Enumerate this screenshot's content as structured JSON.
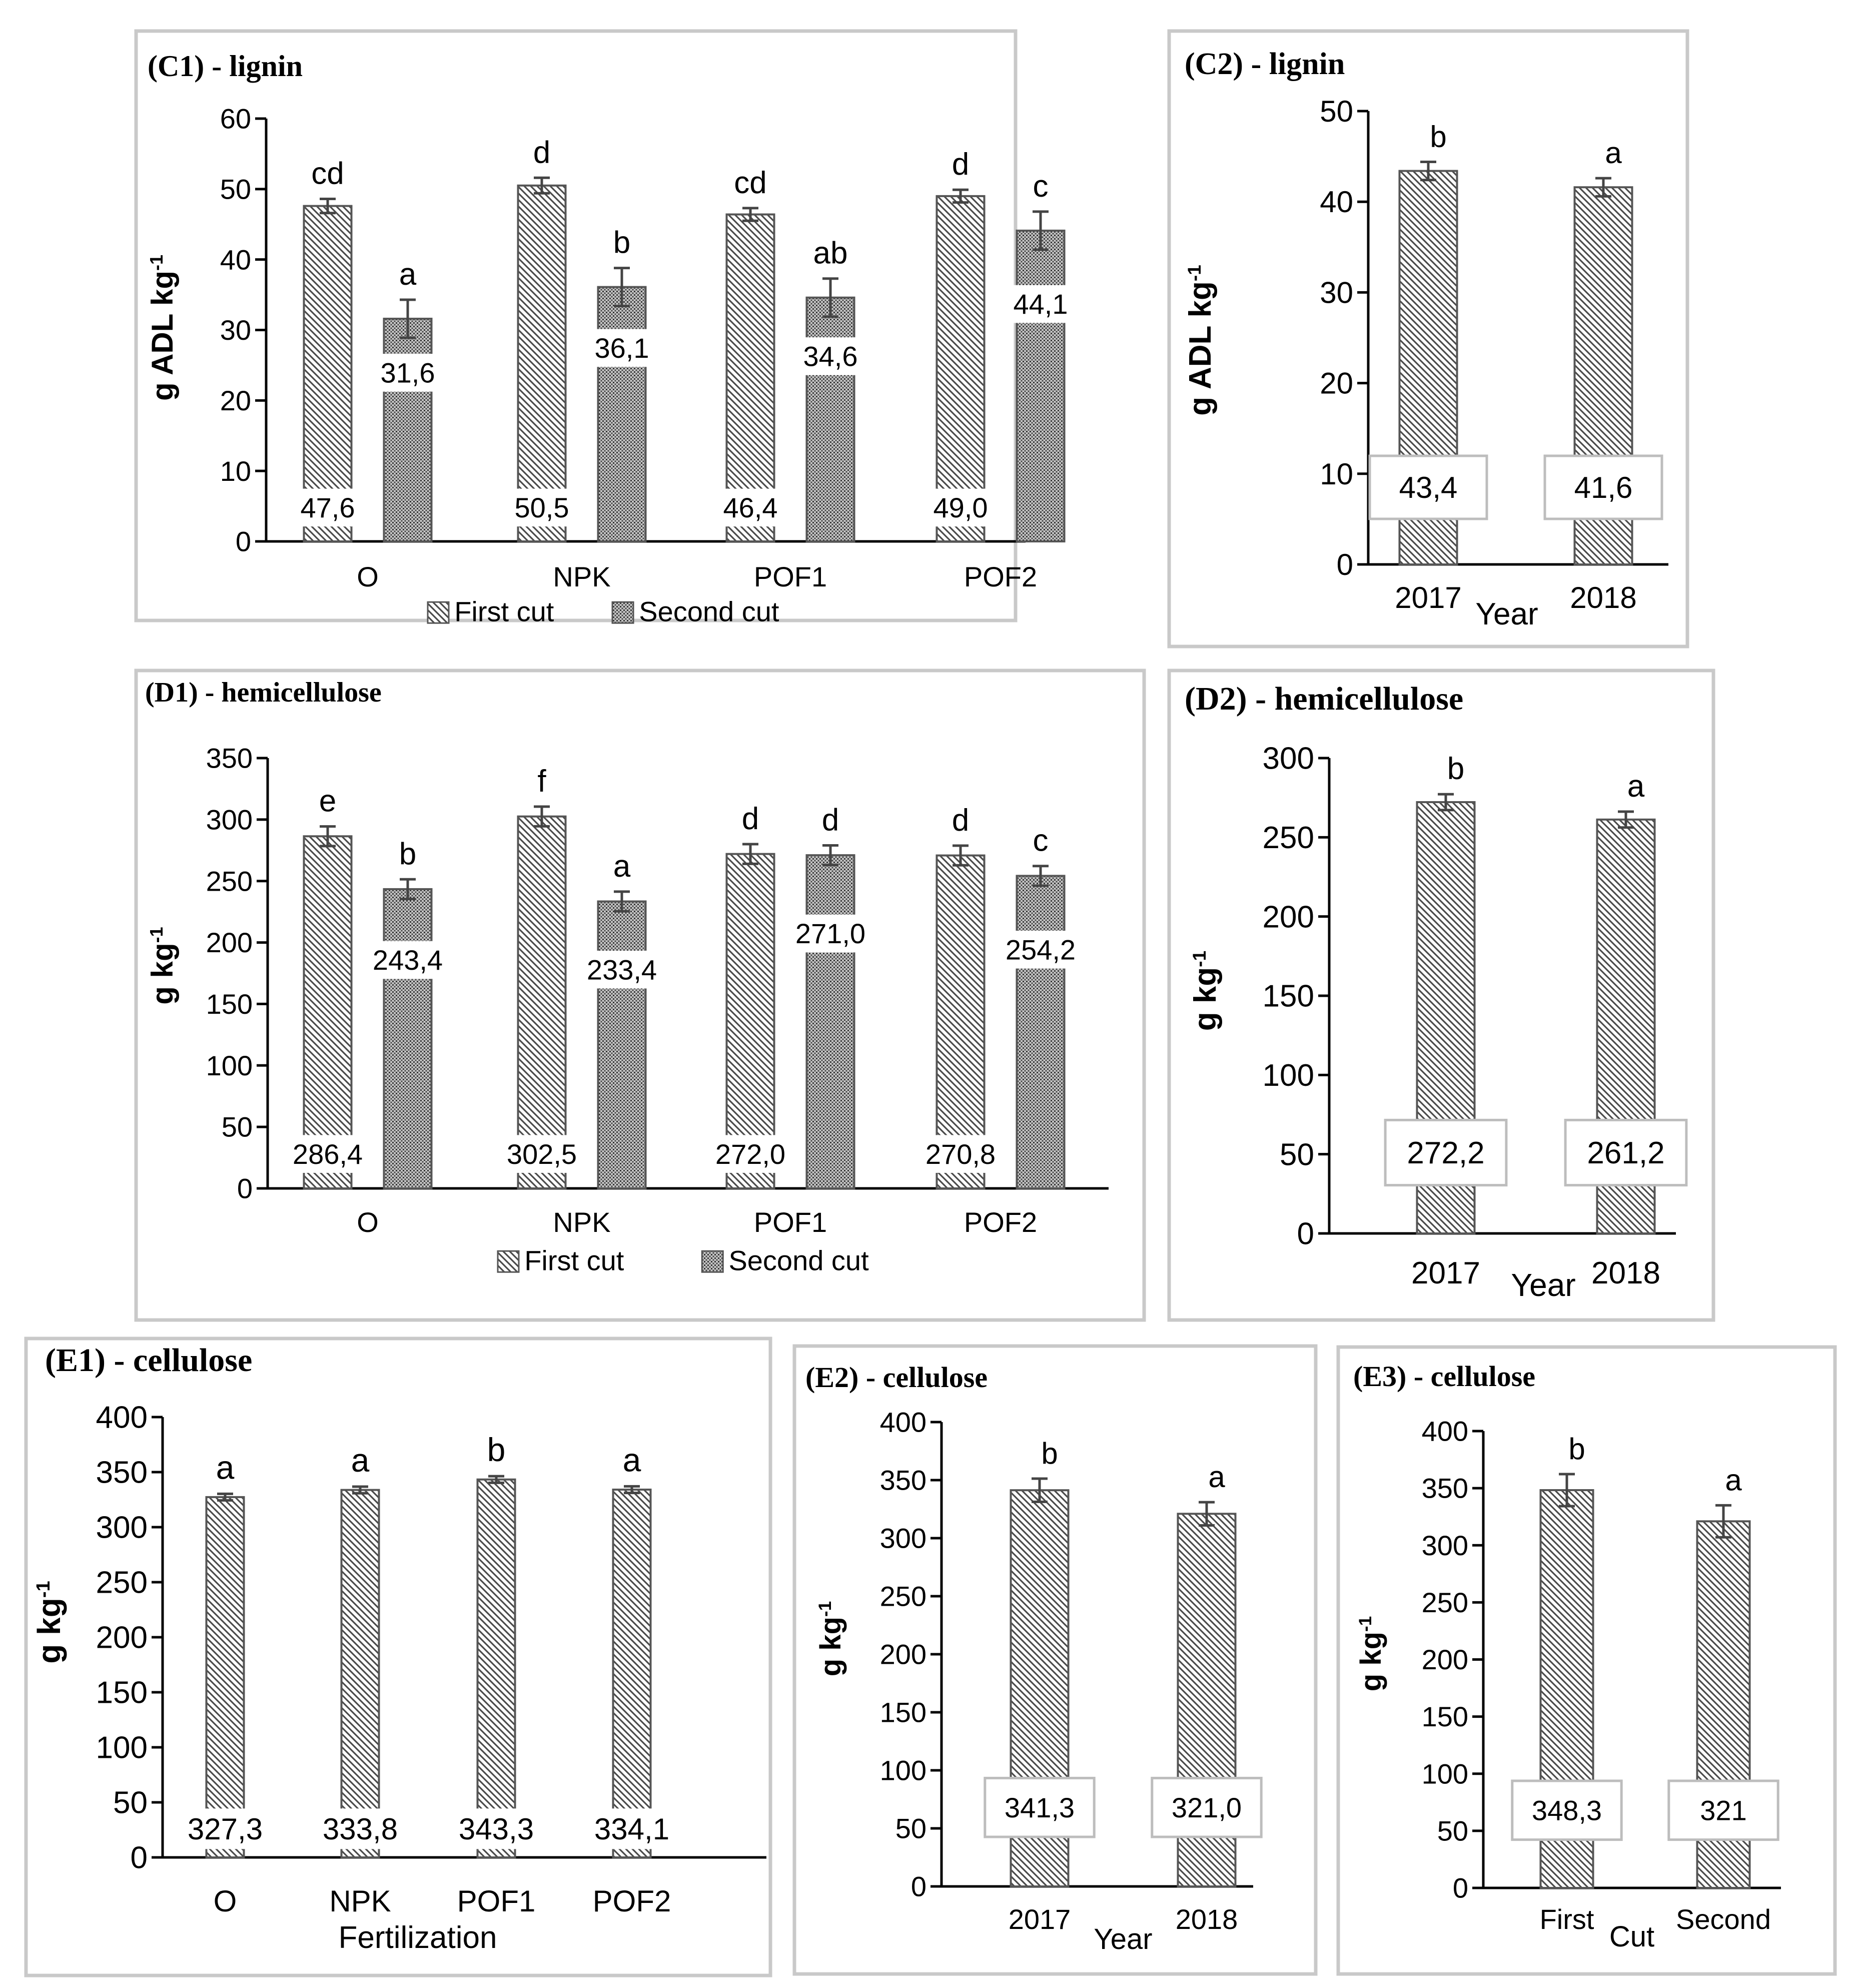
{
  "chart_data": [
    {
      "id": "C1",
      "type": "bar",
      "title": "(C1) - lignin",
      "ylabel": "g ADL kg-1",
      "xlabel": "",
      "ylim": [
        0,
        60
      ],
      "yticks": [
        0,
        10,
        20,
        30,
        40,
        50,
        60
      ],
      "categories": [
        "O",
        "NPK",
        "POF1",
        "POF2"
      ],
      "series": [
        {
          "name": "First cut",
          "pattern": "first",
          "values": [
            47.6,
            50.5,
            46.4,
            49.0
          ],
          "labels": [
            "47,6",
            "50,5",
            "46,4",
            "49,0"
          ],
          "errors": [
            1.0,
            1.1,
            0.9,
            0.9
          ],
          "letters": [
            "cd",
            "d",
            "cd",
            "d"
          ]
        },
        {
          "name": "Second cut",
          "pattern": "second",
          "values": [
            31.6,
            36.1,
            34.6,
            44.1
          ],
          "labels": [
            "31,6",
            "36,1",
            "34,6",
            "44,1"
          ],
          "errors": [
            2.7,
            2.7,
            2.7,
            2.7
          ],
          "letters": [
            "a",
            "b",
            "ab",
            "c"
          ]
        }
      ],
      "legend": "bottom"
    },
    {
      "id": "C2",
      "type": "bar",
      "title": "(C2) -  lignin",
      "ylabel": "g ADL kg-1",
      "xlabel": "Year",
      "ylim": [
        0,
        50
      ],
      "yticks": [
        0,
        10,
        20,
        30,
        40,
        50
      ],
      "categories": [
        "2017",
        "2018"
      ],
      "series": [
        {
          "name": "Year",
          "pattern": "first",
          "values": [
            43.4,
            41.6
          ],
          "labels": [
            "43,4",
            "41,6"
          ],
          "errors": [
            1.0,
            1.0
          ],
          "letters": [
            "b",
            "a"
          ]
        }
      ]
    },
    {
      "id": "D1",
      "type": "bar",
      "title": "(D1) - hemicellulose",
      "ylabel": "g kg-1",
      "xlabel": "",
      "ylim": [
        0,
        350
      ],
      "yticks": [
        0,
        50,
        100,
        150,
        200,
        250,
        300,
        350
      ],
      "categories": [
        "O",
        "NPK",
        "POF1",
        "POF2"
      ],
      "series": [
        {
          "name": "First cut",
          "pattern": "first",
          "values": [
            286.4,
            302.5,
            272.0,
            270.8
          ],
          "labels": [
            "286,4",
            "302,5",
            "272,0",
            "270,8"
          ],
          "errors": [
            8,
            8,
            8,
            8
          ],
          "letters": [
            "e",
            "f",
            "d",
            "d"
          ]
        },
        {
          "name": "Second cut",
          "pattern": "second",
          "values": [
            243.4,
            233.4,
            271.0,
            254.2
          ],
          "labels": [
            "243,4",
            "233,4",
            "271,0",
            "254,2"
          ],
          "errors": [
            8,
            8,
            8,
            8
          ],
          "letters": [
            "b",
            "a",
            "d",
            "c"
          ]
        }
      ],
      "legend": "bottom"
    },
    {
      "id": "D2",
      "type": "bar",
      "title": "(D2) -  hemicellulose",
      "ylabel": "g kg-1",
      "xlabel": "Year",
      "ylim": [
        0,
        300
      ],
      "yticks": [
        0,
        50,
        100,
        150,
        200,
        250,
        300
      ],
      "categories": [
        "2017",
        "2018"
      ],
      "series": [
        {
          "name": "Year",
          "pattern": "first",
          "values": [
            272.2,
            261.2
          ],
          "labels": [
            "272,2",
            "261,2"
          ],
          "errors": [
            5,
            5
          ],
          "letters": [
            "b",
            "a"
          ]
        }
      ]
    },
    {
      "id": "E1",
      "type": "bar",
      "title": "(E1) - cellulose",
      "ylabel": "g kg-1",
      "xlabel": "Fertilization",
      "ylim": [
        0,
        400
      ],
      "yticks": [
        0,
        50,
        100,
        150,
        200,
        250,
        300,
        350,
        400
      ],
      "categories": [
        "O",
        "NPK",
        "POF1",
        "POF2"
      ],
      "series": [
        {
          "name": "Fertilization",
          "pattern": "first",
          "values": [
            327.3,
            333.8,
            343.3,
            334.1
          ],
          "labels": [
            "327,3",
            "333,8",
            "343,3",
            "334,1"
          ],
          "errors": [
            3,
            3,
            3,
            3
          ],
          "letters": [
            "a",
            "a",
            "b",
            "a"
          ]
        }
      ]
    },
    {
      "id": "E2",
      "type": "bar",
      "title": "(E2) - cellulose",
      "ylabel": "g kg-1",
      "xlabel": "Year",
      "ylim": [
        0,
        400
      ],
      "yticks": [
        0,
        50,
        100,
        150,
        200,
        250,
        300,
        350,
        400
      ],
      "categories": [
        "2017",
        "2018"
      ],
      "series": [
        {
          "name": "Year",
          "pattern": "first",
          "values": [
            341.3,
            321.0
          ],
          "labels": [
            "341,3",
            "321,0"
          ],
          "errors": [
            10,
            10
          ],
          "letters": [
            "b",
            "a"
          ]
        }
      ]
    },
    {
      "id": "E3",
      "type": "bar",
      "title": "(E3) - cellulose",
      "ylabel": "g kg-1",
      "xlabel": "Cut",
      "ylim": [
        0,
        400
      ],
      "yticks": [
        0,
        50,
        100,
        150,
        200,
        250,
        300,
        350,
        400
      ],
      "categories": [
        "First",
        "Second"
      ],
      "series": [
        {
          "name": "Cut",
          "pattern": "first",
          "values": [
            348.3,
            321
          ],
          "labels": [
            "348,3",
            "321"
          ],
          "errors": [
            14,
            14
          ],
          "letters": [
            "b",
            "a"
          ]
        }
      ]
    }
  ]
}
